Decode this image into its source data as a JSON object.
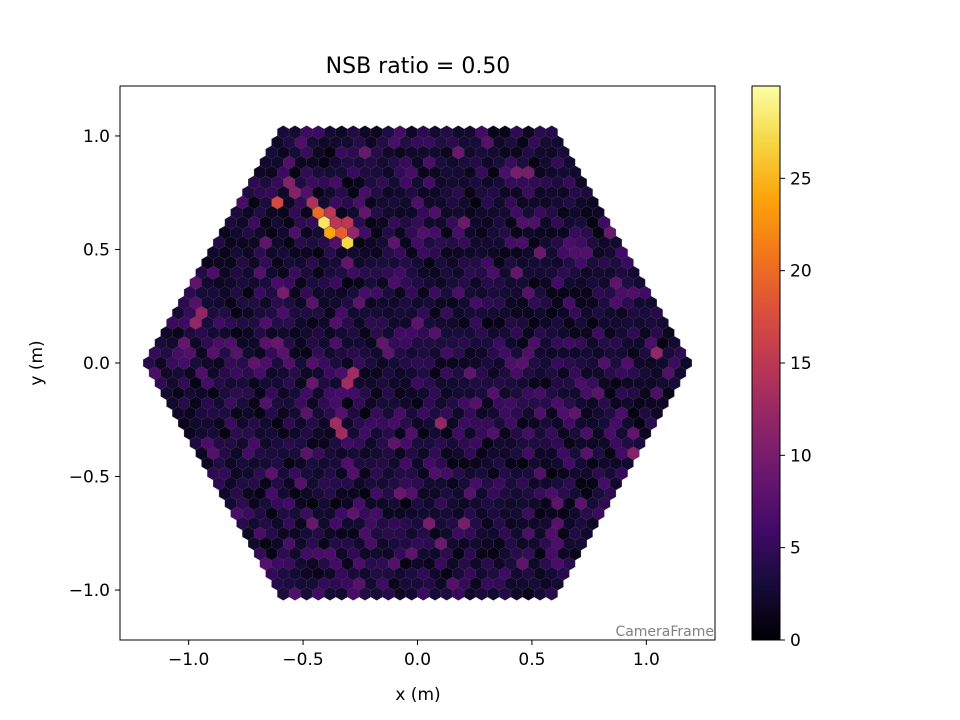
{
  "chart_data": {
    "type": "heatmap",
    "subtype": "hexagonal-camera-image",
    "title": "NSB ratio = 0.50",
    "xlabel": "x  (m)",
    "ylabel": "y  (m)",
    "xlim": [
      -1.3,
      1.3
    ],
    "ylim": [
      -1.22,
      1.22
    ],
    "xticks": [
      -1.0,
      -0.5,
      0.0,
      0.5,
      1.0
    ],
    "yticks": [
      -1.0,
      -0.5,
      0.0,
      0.5,
      1.0
    ],
    "xtick_labels": [
      "−1.0",
      "−0.5",
      "0.0",
      "0.5",
      "1.0"
    ],
    "ytick_labels": [
      "−1.0",
      "−0.5",
      "0.0",
      "0.5",
      "1.0"
    ],
    "annotation": "CameraFrame",
    "colormap": "inferno",
    "colorbar": {
      "range": [
        0,
        30
      ],
      "ticks": [
        0,
        5,
        10,
        15,
        20,
        25
      ],
      "tick_labels": [
        "0",
        "5",
        "10",
        "15",
        "20",
        "25"
      ]
    },
    "camera": {
      "shape": "hexagon",
      "outer_radius": 1.19,
      "pixel_spacing": 0.051,
      "background_mean": 4.5,
      "grid": false
    },
    "hot_pixels": [
      {
        "x": -0.4,
        "y": 0.61,
        "value": 28
      },
      {
        "x": -0.32,
        "y": 0.53,
        "value": 27
      },
      {
        "x": -0.37,
        "y": 0.58,
        "value": 24
      },
      {
        "x": -0.43,
        "y": 0.64,
        "value": 20
      },
      {
        "x": -0.35,
        "y": 0.56,
        "value": 19
      },
      {
        "x": -0.59,
        "y": 0.71,
        "value": 17
      },
      {
        "x": -0.45,
        "y": 0.67,
        "value": 16
      },
      {
        "x": -0.38,
        "y": 0.66,
        "value": 15
      },
      {
        "x": -0.33,
        "y": 0.6,
        "value": 15
      },
      {
        "x": -0.48,
        "y": 0.7,
        "value": 14
      },
      {
        "x": -0.3,
        "y": 0.57,
        "value": 12
      },
      {
        "x": -0.55,
        "y": 0.77,
        "value": 11
      },
      {
        "x": 0.1,
        "y": 1.07,
        "value": 13
      },
      {
        "x": 0.46,
        "y": 0.83,
        "value": 10
      },
      {
        "x": -0.95,
        "y": 0.2,
        "value": 12
      },
      {
        "x": -0.3,
        "y": -0.07,
        "value": 13
      },
      {
        "x": -0.34,
        "y": -0.29,
        "value": 13
      },
      {
        "x": 0.1,
        "y": -0.26,
        "value": 12
      },
      {
        "x": 1.04,
        "y": 0.05,
        "value": 12
      },
      {
        "x": 0.96,
        "y": -0.41,
        "value": 11
      },
      {
        "x": 0.22,
        "y": -0.72,
        "value": 10
      },
      {
        "x": 0.05,
        "y": -0.7,
        "value": 10
      },
      {
        "x": -0.58,
        "y": 0.31,
        "value": 10
      },
      {
        "x": 0.55,
        "y": 0.47,
        "value": 9
      },
      {
        "x": 0.85,
        "y": 0.58,
        "value": 9
      }
    ]
  }
}
